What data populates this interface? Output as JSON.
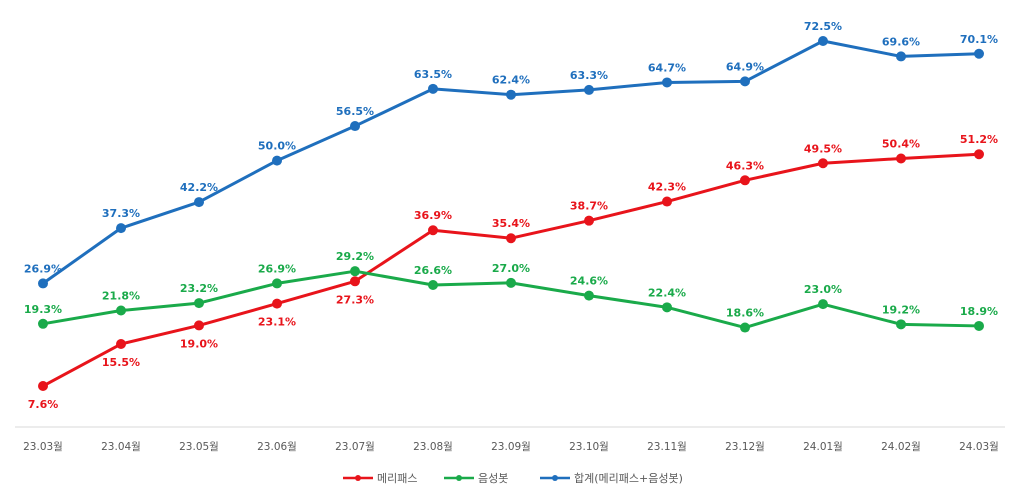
{
  "chart_data": {
    "type": "line",
    "categories": [
      "23.03월",
      "23.04월",
      "23.05월",
      "23.06월",
      "23.07월",
      "23.08월",
      "23.09월",
      "23.10월",
      "23.11월",
      "23.12월",
      "24.01월",
      "24.02월",
      "24.03월"
    ],
    "series": [
      {
        "name": "메리패스",
        "color": "#e8141b",
        "label_position": [
          "below",
          "below",
          "below",
          "below",
          "below",
          "above",
          "above",
          "above",
          "above",
          "above",
          "above",
          "above",
          "above"
        ],
        "values": [
          7.6,
          15.5,
          19.0,
          23.1,
          27.3,
          36.9,
          35.4,
          38.7,
          42.3,
          46.3,
          49.5,
          50.4,
          51.2
        ]
      },
      {
        "name": "음성봇",
        "color": "#1aaa4a",
        "label_position": "above",
        "values": [
          19.3,
          21.8,
          23.2,
          26.9,
          29.2,
          26.6,
          27.0,
          24.6,
          22.4,
          18.6,
          23.0,
          19.2,
          18.9
        ]
      },
      {
        "name": "합계(메리패스+음성봇)",
        "color": "#1f6fbd",
        "label_position": "above",
        "values": [
          26.9,
          37.3,
          42.2,
          50.0,
          56.5,
          63.5,
          62.4,
          63.3,
          64.7,
          64.9,
          72.5,
          69.6,
          70.1
        ]
      }
    ],
    "value_suffix": "%",
    "legend_position": "bottom",
    "grid": false
  }
}
